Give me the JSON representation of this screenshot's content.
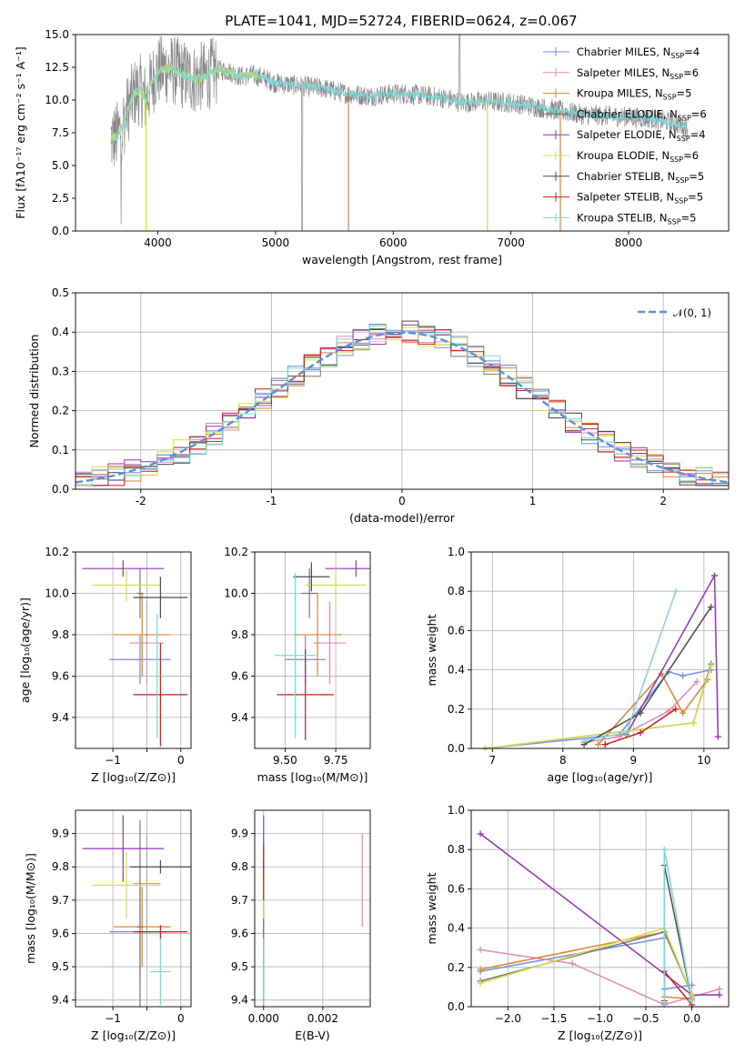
{
  "figure_title": "PLATE=1041, MJD=52724, FIBERID=0624, z=0.067",
  "colors": {
    "Chabrier MILES": "#6f8fe0",
    "Salpeter MILES": "#e08ab8",
    "Kroupa MILES": "#e0822e",
    "Chabrier ELODIE": "#777777",
    "Salpeter ELODIE": "#9a32b5",
    "Kroupa ELODIE": "#d4e04a",
    "Chabrier STELIB": "#4a4a4a",
    "Salpeter STELIB": "#c81e1e",
    "Kroupa STELIB": "#7fd6d6",
    "data_gray": "#888888",
    "normal": "#5b8fd6"
  },
  "chart_data": [
    {
      "id": "spectrum",
      "type": "line",
      "title": "PLATE=1041, MJD=52724, FIBERID=0624, z=0.067",
      "xlabel": "wavelength [Angstrom, rest frame]",
      "ylabel": "Flux [fλ10⁻¹⁷ erg cm⁻² s⁻¹ A⁻¹]",
      "xlim": [
        3300,
        8850
      ],
      "ylim": [
        0,
        15
      ],
      "xticks": [
        4000,
        5000,
        6000,
        7000,
        8000
      ],
      "yticks": [
        0.0,
        2.5,
        5.0,
        7.5,
        10.0,
        12.5,
        15.0
      ],
      "grid": false,
      "legend_position": "top-right",
      "legend": [
        {
          "name": "Chabrier MILES",
          "nssp": "4"
        },
        {
          "name": "Salpeter MILES",
          "nssp": "6"
        },
        {
          "name": "Kroupa MILES",
          "nssp": "5"
        },
        {
          "name": "Chabrier ELODIE",
          "nssp": "6"
        },
        {
          "name": "Salpeter ELODIE",
          "nssp": "4"
        },
        {
          "name": "Kroupa ELODIE",
          "nssp": "6"
        },
        {
          "name": "Chabrier STELIB",
          "nssp": "5"
        },
        {
          "name": "Salpeter STELIB",
          "nssp": "5"
        },
        {
          "name": "Kroupa STELIB",
          "nssp": "5"
        }
      ],
      "x": [
        3600,
        3650,
        3700,
        3750,
        3800,
        3850,
        3900,
        3950,
        4000,
        4100,
        4200,
        4300,
        4400,
        4500,
        4600,
        4700,
        4800,
        4900,
        5000,
        5200,
        5400,
        5600,
        5800,
        6000,
        6200,
        6400,
        6600,
        6800,
        7000,
        7200,
        7400,
        7600,
        7800,
        8000,
        8200,
        8400,
        8600
      ],
      "continuum": [
        7.0,
        7.2,
        8.0,
        9.5,
        10.5,
        10.8,
        10.0,
        11.5,
        12.2,
        12.4,
        12.0,
        11.6,
        11.8,
        12.3,
        12.2,
        11.8,
        11.9,
        11.7,
        11.3,
        11.1,
        10.9,
        10.5,
        10.3,
        10.5,
        10.4,
        10.2,
        9.8,
        9.9,
        9.8,
        9.5,
        9.2,
        8.9,
        8.8,
        8.7,
        8.6,
        8.2,
        7.6
      ]
    },
    {
      "id": "residuals",
      "type": "line",
      "xlabel": "(data-model)/error",
      "ylabel": "Normed distribution",
      "xlim": [
        -2.5,
        2.5
      ],
      "ylim": [
        0,
        0.5
      ],
      "xticks": [
        -2,
        -1,
        0,
        1,
        2
      ],
      "yticks": [
        0.0,
        0.1,
        0.2,
        0.3,
        0.4,
        0.5
      ],
      "grid": true,
      "legend_position": "top-right",
      "legend": [
        "𝒩(0, 1)"
      ],
      "bins": 40
    },
    {
      "id": "age-vs-Z",
      "type": "scatter",
      "xlabel": "Z [log₁₀(Z/Z⊙)]",
      "ylabel": "age  [log₁₀(age/yr)]",
      "xlim": [
        -1.55,
        0.15
      ],
      "ylim": [
        9.25,
        10.2
      ],
      "xticks": [
        -1,
        -0.5,
        0
      ],
      "xticklabels": [
        "−1",
        "",
        "0"
      ],
      "yticks": [
        9.4,
        9.6,
        9.8,
        10.0,
        10.2
      ],
      "grid": true,
      "points": [
        {
          "s": "Chabrier MILES",
          "x": -0.6,
          "xe": 0.45,
          "y": 9.68,
          "ye": 0.12
        },
        {
          "s": "Salpeter MILES",
          "x": -0.5,
          "xe": 0.25,
          "y": 9.76,
          "ye": 0.2
        },
        {
          "s": "Kroupa MILES",
          "x": -0.57,
          "xe": 0.42,
          "y": 9.8,
          "ye": 0.2
        },
        {
          "s": "Chabrier ELODIE",
          "x": -0.6,
          "xe": 0.05,
          "y": 10.0,
          "ye": 0.12
        },
        {
          "s": "Salpeter ELODIE",
          "x": -0.85,
          "xe": 0.6,
          "y": 10.12,
          "ye": 0.04
        },
        {
          "s": "Kroupa ELODIE",
          "x": -0.8,
          "xe": 0.5,
          "y": 10.04,
          "ye": 0.08
        },
        {
          "s": "Chabrier STELIB",
          "x": -0.3,
          "xe": 0.4,
          "y": 9.98,
          "ye": 0.1
        },
        {
          "s": "Salpeter STELIB",
          "x": -0.3,
          "xe": 0.4,
          "y": 9.51,
          "ye": 0.25
        },
        {
          "s": "Kroupa STELIB",
          "x": -0.35,
          "xe": 0.05,
          "y": 9.6,
          "ye": 0.3
        }
      ]
    },
    {
      "id": "age-vs-mass",
      "type": "scatter",
      "xlabel": "mass [log₁₀(M/M⊙)]",
      "ylabel": "",
      "xlim": [
        9.35,
        9.92
      ],
      "ylim": [
        9.25,
        10.2
      ],
      "xticks": [
        9.5,
        9.75
      ],
      "xticklabels": [
        "9.50",
        "9.75"
      ],
      "yticks": [
        9.4,
        9.6,
        9.8,
        10.0,
        10.2
      ],
      "grid": true,
      "points": [
        {
          "s": "Chabrier MILES",
          "x": 9.6,
          "xe": 0.1,
          "y": 9.68,
          "ye": 0.12
        },
        {
          "s": "Salpeter MILES",
          "x": 9.72,
          "xe": 0.08,
          "y": 9.76,
          "ye": 0.2
        },
        {
          "s": "Kroupa MILES",
          "x": 9.66,
          "xe": 0.12,
          "y": 9.8,
          "ye": 0.2
        },
        {
          "s": "Chabrier ELODIE",
          "x": 9.62,
          "xe": 0.04,
          "y": 10.0,
          "ye": 0.12
        },
        {
          "s": "Salpeter ELODIE",
          "x": 9.85,
          "xe": 0.15,
          "y": 10.12,
          "ye": 0.04
        },
        {
          "s": "Kroupa ELODIE",
          "x": 9.75,
          "xe": 0.15,
          "y": 10.04,
          "ye": 0.08
        },
        {
          "s": "Chabrier STELIB",
          "x": 9.63,
          "xe": 0.09,
          "y": 10.08,
          "ye": 0.07
        },
        {
          "s": "Salpeter STELIB",
          "x": 9.6,
          "xe": 0.14,
          "y": 9.51,
          "ye": 0.22
        },
        {
          "s": "Kroupa STELIB",
          "x": 9.55,
          "xe": 0.1,
          "y": 9.7,
          "ye": 0.4
        }
      ]
    },
    {
      "id": "weight-vs-age",
      "type": "line",
      "xlabel": "age  [log₁₀(age/yr)]",
      "ylabel": "mass weight",
      "xlim": [
        6.7,
        10.35
      ],
      "ylim": [
        0,
        1
      ],
      "xticks": [
        7,
        8,
        9,
        10
      ],
      "yticks": [
        0.0,
        0.2,
        0.4,
        0.6,
        0.8,
        1.0
      ],
      "grid": true,
      "series": [
        {
          "s": "Chabrier MILES",
          "x": [
            6.9,
            8.8,
            9.5,
            9.7,
            10.1
          ],
          "y": [
            0.0,
            0.07,
            0.39,
            0.37,
            0.4
          ]
        },
        {
          "s": "Salpeter MILES",
          "x": [
            8.3,
            8.8,
            9.5,
            9.9
          ],
          "y": [
            0.03,
            0.06,
            0.19,
            0.34
          ]
        },
        {
          "s": "Kroupa MILES",
          "x": [
            8.5,
            9.4,
            9.7,
            10.05
          ],
          "y": [
            0.02,
            0.38,
            0.18,
            0.35
          ]
        },
        {
          "s": "Chabrier ELODIE",
          "x": [
            6.9,
            9.85,
            10.1
          ],
          "y": [
            0.0,
            0.13,
            0.43
          ]
        },
        {
          "s": "Salpeter ELODIE",
          "x": [
            8.9,
            10.15,
            10.2
          ],
          "y": [
            0.07,
            0.88,
            0.06
          ]
        },
        {
          "s": "Kroupa ELODIE",
          "x": [
            6.9,
            9.85,
            10.1
          ],
          "y": [
            0.0,
            0.13,
            0.42
          ]
        },
        {
          "s": "Chabrier STELIB",
          "x": [
            8.3,
            9.1,
            10.1
          ],
          "y": [
            0.02,
            0.18,
            0.72
          ]
        },
        {
          "s": "Salpeter STELIB",
          "x": [
            8.6,
            9.1,
            9.6
          ],
          "y": [
            0.02,
            0.08,
            0.2
          ]
        },
        {
          "s": "Kroupa STELIB",
          "x": [
            8.3,
            8.9,
            9.6
          ],
          "y": [
            0.04,
            0.08,
            0.8
          ]
        }
      ]
    },
    {
      "id": "mass-vs-Z",
      "type": "scatter",
      "xlabel": "Z [log₁₀(Z/Z⊙)]",
      "ylabel": "mass [log₁₀(M/M⊙)]",
      "xlim": [
        -1.55,
        0.15
      ],
      "ylim": [
        9.38,
        9.97
      ],
      "xticks": [
        -1,
        -0.5,
        0
      ],
      "xticklabels": [
        "−1",
        "",
        "0"
      ],
      "yticks": [
        9.4,
        9.5,
        9.6,
        9.7,
        9.8,
        9.9
      ],
      "grid": true,
      "points": [
        {
          "s": "Chabrier MILES",
          "x": -0.6,
          "xe": 0.45,
          "y": 9.605,
          "ye": 0.14
        },
        {
          "s": "Salpeter MILES",
          "x": -0.5,
          "xe": 0.2,
          "y": 9.75,
          "ye": 0.15
        },
        {
          "s": "Kroupa MILES",
          "x": -0.57,
          "xe": 0.42,
          "y": 9.62,
          "ye": 0.12
        },
        {
          "s": "Chabrier ELODIE",
          "x": -0.6,
          "xe": 0.05,
          "y": 9.62,
          "ye": 0.32
        },
        {
          "s": "Salpeter ELODIE",
          "x": -0.85,
          "xe": 0.6,
          "y": 9.855,
          "ye": 0.1
        },
        {
          "s": "Kroupa ELODIE",
          "x": -0.8,
          "xe": 0.5,
          "y": 9.745,
          "ye": 0.1
        },
        {
          "s": "Chabrier STELIB",
          "x": -0.3,
          "xe": 0.45,
          "y": 9.8,
          "ye": 0.02
        },
        {
          "s": "Salpeter STELIB",
          "x": -0.3,
          "xe": 0.4,
          "y": 9.605,
          "ye": 0.02
        },
        {
          "s": "Kroupa STELIB",
          "x": -0.3,
          "xe": 0.15,
          "y": 9.485,
          "ye": 0.1
        }
      ]
    },
    {
      "id": "mass-vs-ebv",
      "type": "scatter",
      "xlabel": "E(B-V)",
      "ylabel": "",
      "xlim": [
        -0.0003,
        0.0036
      ],
      "ylim": [
        9.38,
        9.97
      ],
      "xticks": [
        0.0,
        0.002
      ],
      "xticklabels": [
        "0.000",
        "0.002"
      ],
      "yticks": [
        9.4,
        9.5,
        9.6,
        9.7,
        9.8,
        9.9
      ],
      "grid": true,
      "points": [
        {
          "s": "Chabrier MILES",
          "x": 0.0,
          "xe": 0.0,
          "y": 9.605,
          "ye": 0.14
        },
        {
          "s": "Salpeter MILES",
          "x": 0.00333,
          "xe": 0.0,
          "y": 9.76,
          "ye": 0.14
        },
        {
          "s": "Kroupa MILES",
          "x": 0.0,
          "xe": 0.0,
          "y": 9.62,
          "ye": 0.12
        },
        {
          "s": "Chabrier ELODIE",
          "x": 0.0,
          "xe": 0.0,
          "y": 9.62,
          "ye": 0.25
        },
        {
          "s": "Salpeter ELODIE",
          "x": 0.0,
          "xe": 0.0,
          "y": 9.855,
          "ye": 0.1
        },
        {
          "s": "Kroupa ELODIE",
          "x": 0.0,
          "xe": 0.0,
          "y": 9.745,
          "ye": 0.1
        },
        {
          "s": "Chabrier STELIB",
          "x": 0.0,
          "xe": 0.0,
          "y": 9.8,
          "ye": 0.02
        },
        {
          "s": "Salpeter STELIB",
          "x": 0.0,
          "xe": 0.0,
          "y": 9.78,
          "ye": 0.08
        },
        {
          "s": "Kroupa STELIB",
          "x": 0.0,
          "xe": 0.0,
          "y": 9.485,
          "ye": 0.1
        }
      ]
    },
    {
      "id": "weight-vs-Z",
      "type": "line",
      "xlabel": "Z [log₁₀(Z/Z⊙)]",
      "ylabel": "mass weight",
      "xlim": [
        -2.4,
        0.4
      ],
      "ylim": [
        0,
        1
      ],
      "xticks": [
        -2.0,
        -1.5,
        -1.0,
        -0.5,
        0.0
      ],
      "xticklabels": [
        "−2.0",
        "−1.5",
        "−1.0",
        "−0.5",
        "0.0"
      ],
      "yticks": [
        0.0,
        0.2,
        0.4,
        0.6,
        0.8,
        1.0
      ],
      "grid": true,
      "series": [
        {
          "s": "Chabrier MILES",
          "x": [
            -2.3,
            -0.3,
            -0.3,
            0.0
          ],
          "y": [
            0.18,
            0.35,
            0.09,
            0.11
          ]
        },
        {
          "s": "Salpeter MILES",
          "x": [
            -2.3,
            -1.3,
            -0.3,
            0.3
          ],
          "y": [
            0.29,
            0.22,
            0.01,
            0.09
          ]
        },
        {
          "s": "Kroupa MILES",
          "x": [
            -2.3,
            -0.3,
            -0.3,
            0.0
          ],
          "y": [
            0.19,
            0.38,
            0.05,
            0.04
          ]
        },
        {
          "s": "Chabrier ELODIE",
          "x": [
            -2.3,
            -0.3,
            0.0
          ],
          "y": [
            0.13,
            0.38,
            0.06
          ]
        },
        {
          "s": "Salpeter ELODIE",
          "x": [
            -2.3,
            0.0,
            0.3
          ],
          "y": [
            0.88,
            0.06,
            0.06
          ]
        },
        {
          "s": "Kroupa ELODIE",
          "x": [
            -2.3,
            -0.3,
            0.0
          ],
          "y": [
            0.12,
            0.4,
            0.06
          ]
        },
        {
          "s": "Chabrier STELIB",
          "x": [
            -0.3,
            -0.3,
            0.0
          ],
          "y": [
            0.02,
            0.72,
            0.03
          ]
        },
        {
          "s": "Salpeter STELIB",
          "x": [
            -0.3,
            -0.3,
            0.0
          ],
          "y": [
            0.03,
            0.18,
            0.01
          ]
        },
        {
          "s": "Kroupa STELIB",
          "x": [
            -0.3,
            -0.3,
            0.0
          ],
          "y": [
            0.02,
            0.8,
            0.03
          ]
        }
      ]
    }
  ]
}
